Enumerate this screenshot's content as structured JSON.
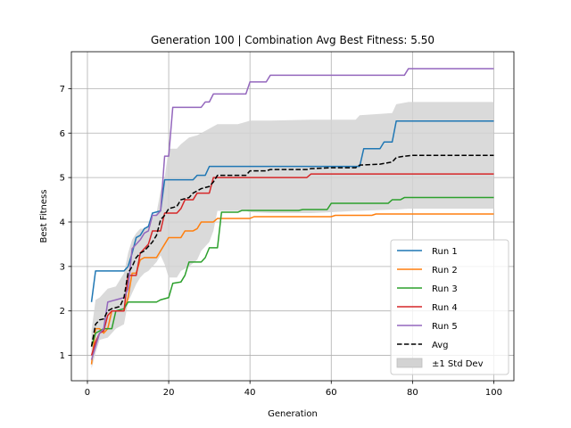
{
  "chart_data": {
    "type": "line",
    "title": "Generation 100 | Combination Avg Best Fitness: 5.50",
    "xlabel": "Generation",
    "ylabel": "Best Fitness",
    "xlim": [
      -3.95,
      104.95
    ],
    "ylim": [
      0.43,
      7.83
    ],
    "xticks": [
      0,
      20,
      40,
      60,
      80,
      100
    ],
    "yticks": [
      1,
      2,
      3,
      4,
      5,
      6,
      7
    ],
    "grid": true,
    "legend_position": "lower-right",
    "series": [
      {
        "name": "Run 1",
        "color": "#1f77b4",
        "points": [
          [
            1,
            2.2
          ],
          [
            2,
            2.9
          ],
          [
            9,
            2.9
          ],
          [
            10,
            3.0
          ],
          [
            11,
            3.3
          ],
          [
            12,
            3.65
          ],
          [
            13,
            3.7
          ],
          [
            14,
            3.85
          ],
          [
            15,
            3.9
          ],
          [
            16,
            4.2
          ],
          [
            18,
            4.25
          ],
          [
            19,
            4.95
          ],
          [
            26,
            4.95
          ],
          [
            27,
            5.05
          ],
          [
            29,
            5.05
          ],
          [
            30,
            5.25
          ],
          [
            67,
            5.25
          ],
          [
            68,
            5.65
          ],
          [
            72,
            5.65
          ],
          [
            73,
            5.8
          ],
          [
            75,
            5.8
          ],
          [
            76,
            6.27
          ],
          [
            100,
            6.27
          ]
        ]
      },
      {
        "name": "Run 2",
        "color": "#ff7f0e",
        "points": [
          [
            1,
            0.8
          ],
          [
            2,
            1.6
          ],
          [
            3,
            1.6
          ],
          [
            4,
            1.5
          ],
          [
            5,
            1.6
          ],
          [
            6,
            2.0
          ],
          [
            9,
            2.0
          ],
          [
            10,
            2.3
          ],
          [
            11,
            2.85
          ],
          [
            12,
            2.85
          ],
          [
            13,
            3.15
          ],
          [
            14,
            3.2
          ],
          [
            17,
            3.2
          ],
          [
            18,
            3.35
          ],
          [
            20,
            3.65
          ],
          [
            23,
            3.65
          ],
          [
            24,
            3.8
          ],
          [
            26,
            3.8
          ],
          [
            27,
            3.85
          ],
          [
            28,
            4.0
          ],
          [
            31,
            4.0
          ],
          [
            32,
            4.08
          ],
          [
            40,
            4.08
          ],
          [
            41,
            4.12
          ],
          [
            60,
            4.12
          ],
          [
            61,
            4.15
          ],
          [
            70,
            4.15
          ],
          [
            71,
            4.18
          ],
          [
            100,
            4.18
          ]
        ]
      },
      {
        "name": "Run 3",
        "color": "#2ca02c",
        "points": [
          [
            1,
            1.2
          ],
          [
            2,
            1.5
          ],
          [
            3,
            1.55
          ],
          [
            4,
            1.6
          ],
          [
            6,
            1.6
          ],
          [
            7,
            2.0
          ],
          [
            9,
            2.05
          ],
          [
            10,
            2.2
          ],
          [
            17,
            2.2
          ],
          [
            18,
            2.25
          ],
          [
            20,
            2.3
          ],
          [
            21,
            2.62
          ],
          [
            23,
            2.65
          ],
          [
            24,
            2.8
          ],
          [
            25,
            3.1
          ],
          [
            28,
            3.1
          ],
          [
            29,
            3.2
          ],
          [
            30,
            3.42
          ],
          [
            32,
            3.42
          ],
          [
            33,
            4.22
          ],
          [
            37,
            4.22
          ],
          [
            38,
            4.26
          ],
          [
            52,
            4.26
          ],
          [
            53,
            4.28
          ],
          [
            59,
            4.28
          ],
          [
            60,
            4.42
          ],
          [
            74,
            4.42
          ],
          [
            75,
            4.5
          ],
          [
            77,
            4.5
          ],
          [
            78,
            4.55
          ],
          [
            100,
            4.55
          ]
        ]
      },
      {
        "name": "Run 4",
        "color": "#d62728",
        "points": [
          [
            1,
            1.0
          ],
          [
            2,
            1.3
          ],
          [
            3,
            1.5
          ],
          [
            4,
            1.55
          ],
          [
            5,
            1.9
          ],
          [
            6,
            2.0
          ],
          [
            9,
            2.0
          ],
          [
            10,
            2.8
          ],
          [
            12,
            2.8
          ],
          [
            13,
            3.3
          ],
          [
            15,
            3.5
          ],
          [
            16,
            3.8
          ],
          [
            18,
            3.8
          ],
          [
            19,
            4.2
          ],
          [
            22,
            4.2
          ],
          [
            23,
            4.3
          ],
          [
            24,
            4.5
          ],
          [
            26,
            4.5
          ],
          [
            27,
            4.65
          ],
          [
            30,
            4.65
          ],
          [
            31,
            5.0
          ],
          [
            54,
            5.0
          ],
          [
            55,
            5.08
          ],
          [
            100,
            5.08
          ]
        ]
      },
      {
        "name": "Run 5",
        "color": "#9467bd",
        "points": [
          [
            1,
            0.9
          ],
          [
            2,
            1.2
          ],
          [
            3,
            1.5
          ],
          [
            4,
            1.6
          ],
          [
            5,
            2.2
          ],
          [
            7,
            2.25
          ],
          [
            9,
            2.3
          ],
          [
            10,
            2.5
          ],
          [
            11,
            3.4
          ],
          [
            12,
            3.5
          ],
          [
            13,
            3.6
          ],
          [
            14,
            3.75
          ],
          [
            15,
            3.8
          ],
          [
            16,
            4.15
          ],
          [
            17,
            4.15
          ],
          [
            18,
            4.25
          ],
          [
            19,
            5.48
          ],
          [
            20,
            5.48
          ],
          [
            21,
            6.58
          ],
          [
            28,
            6.58
          ],
          [
            29,
            6.7
          ],
          [
            30,
            6.7
          ],
          [
            31,
            6.88
          ],
          [
            39,
            6.88
          ],
          [
            40,
            7.15
          ],
          [
            44,
            7.15
          ],
          [
            45,
            7.3
          ],
          [
            78,
            7.3
          ],
          [
            79,
            7.45
          ],
          [
            100,
            7.45
          ]
        ]
      },
      {
        "name": "Avg",
        "color": "#000000",
        "dashed": true,
        "points": [
          [
            1,
            1.2
          ],
          [
            2,
            1.7
          ],
          [
            3,
            1.8
          ],
          [
            4,
            1.82
          ],
          [
            5,
            2.0
          ],
          [
            6,
            2.05
          ],
          [
            8,
            2.1
          ],
          [
            9,
            2.3
          ],
          [
            10,
            2.85
          ],
          [
            11,
            3.0
          ],
          [
            12,
            3.2
          ],
          [
            13,
            3.3
          ],
          [
            14,
            3.35
          ],
          [
            15,
            3.45
          ],
          [
            16,
            3.55
          ],
          [
            17,
            3.7
          ],
          [
            18,
            4.05
          ],
          [
            19,
            4.15
          ],
          [
            20,
            4.3
          ],
          [
            22,
            4.35
          ],
          [
            23,
            4.5
          ],
          [
            25,
            4.55
          ],
          [
            26,
            4.65
          ],
          [
            28,
            4.75
          ],
          [
            30,
            4.8
          ],
          [
            31,
            4.9
          ],
          [
            32,
            5.05
          ],
          [
            39,
            5.05
          ],
          [
            40,
            5.15
          ],
          [
            44,
            5.15
          ],
          [
            45,
            5.18
          ],
          [
            54,
            5.18
          ],
          [
            55,
            5.2
          ],
          [
            60,
            5.22
          ],
          [
            66,
            5.22
          ],
          [
            67,
            5.28
          ],
          [
            72,
            5.3
          ],
          [
            75,
            5.35
          ],
          [
            76,
            5.45
          ],
          [
            78,
            5.48
          ],
          [
            80,
            5.5
          ],
          [
            100,
            5.5
          ]
        ]
      }
    ],
    "band": {
      "name": "±1 Std Dev",
      "color": "#d3d3d3",
      "points": [
        [
          1,
          0.7,
          1.55
        ],
        [
          2,
          1.05,
          2.25
        ],
        [
          3,
          1.35,
          2.3
        ],
        [
          5,
          1.4,
          2.5
        ],
        [
          7,
          1.6,
          2.55
        ],
        [
          9,
          1.7,
          2.85
        ],
        [
          10,
          2.2,
          3.3
        ],
        [
          11,
          2.4,
          3.6
        ],
        [
          12,
          2.6,
          3.75
        ],
        [
          13,
          2.75,
          3.85
        ],
        [
          14,
          2.85,
          3.85
        ],
        [
          15,
          2.9,
          3.9
        ],
        [
          16,
          3.0,
          4.1
        ],
        [
          17,
          3.1,
          4.2
        ],
        [
          18,
          3.25,
          4.7
        ],
        [
          19,
          3.05,
          5.0
        ],
        [
          20,
          2.75,
          5.65
        ],
        [
          22,
          2.75,
          5.65
        ],
        [
          23,
          2.9,
          5.75
        ],
        [
          25,
          3.0,
          5.9
        ],
        [
          27,
          3.15,
          5.95
        ],
        [
          28,
          3.35,
          6.0
        ],
        [
          30,
          3.55,
          6.1
        ],
        [
          31,
          3.8,
          6.15
        ],
        [
          32,
          4.25,
          6.2
        ],
        [
          37,
          4.25,
          6.2
        ],
        [
          39,
          4.25,
          6.25
        ],
        [
          40,
          4.22,
          6.28
        ],
        [
          45,
          4.2,
          6.28
        ],
        [
          55,
          4.2,
          6.3
        ],
        [
          60,
          4.22,
          6.3
        ],
        [
          66,
          4.25,
          6.3
        ],
        [
          67,
          4.25,
          6.4
        ],
        [
          75,
          4.28,
          6.45
        ],
        [
          76,
          4.28,
          6.65
        ],
        [
          79,
          4.3,
          6.7
        ],
        [
          100,
          4.3,
          6.7
        ]
      ]
    }
  }
}
